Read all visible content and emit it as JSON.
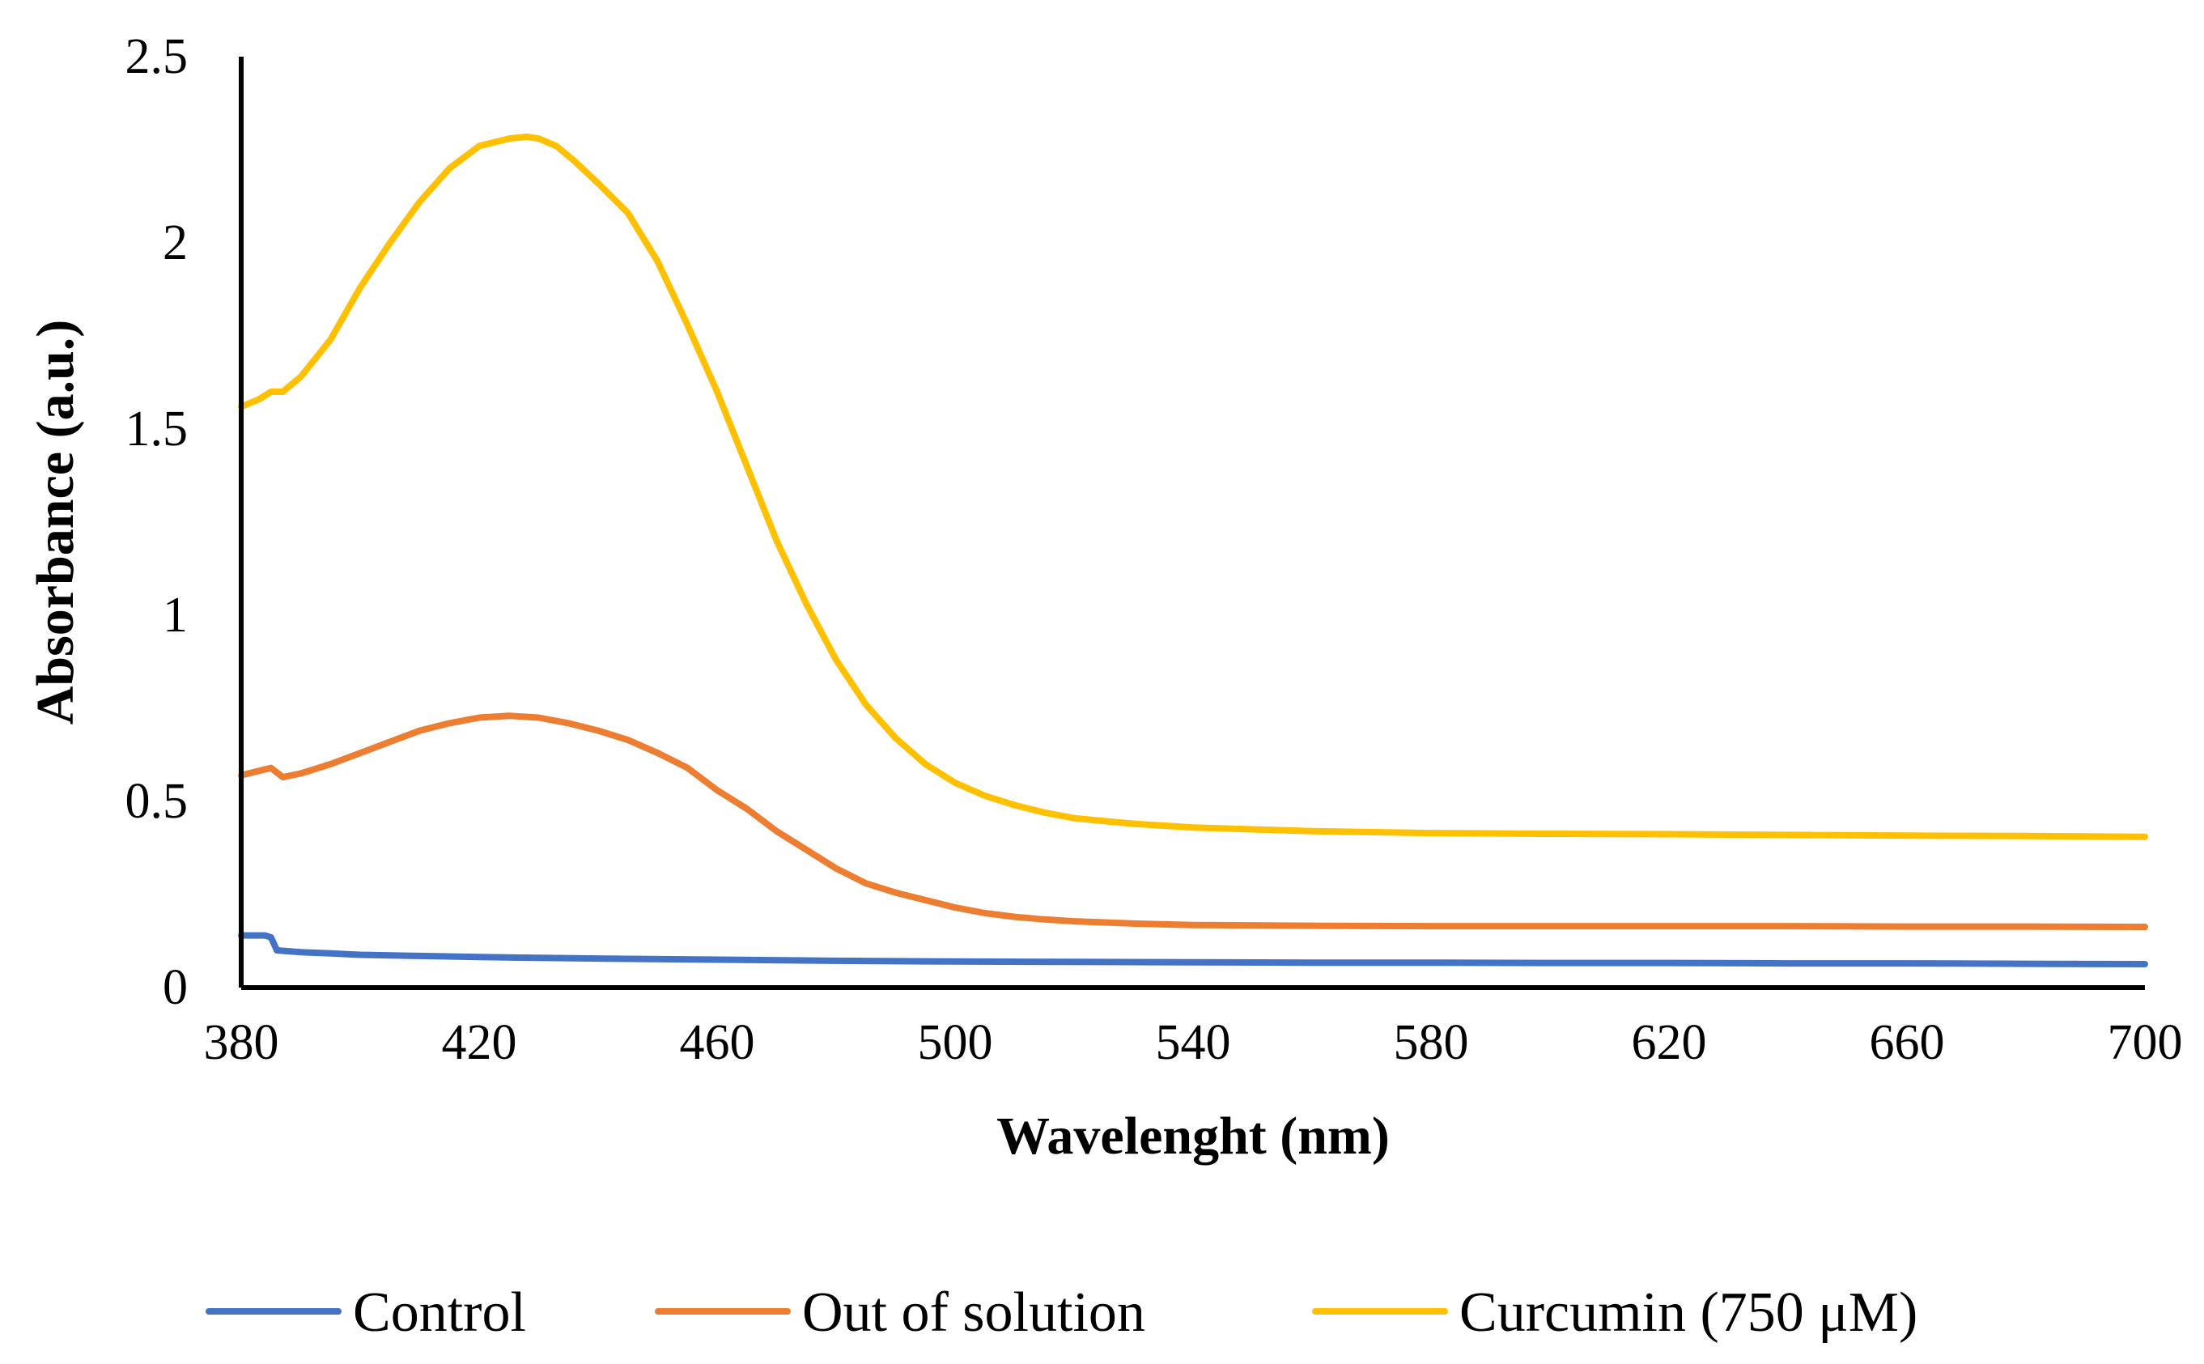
{
  "chart_data": {
    "type": "line",
    "title": "",
    "xlabel": "Wavelenght (nm)",
    "ylabel": "Absorbance (a.u.)",
    "xlim": [
      380,
      700
    ],
    "ylim": [
      0,
      2.5
    ],
    "xticks": [
      "380",
      "420",
      "460",
      "500",
      "540",
      "580",
      "620",
      "660",
      "700"
    ],
    "yticks": [
      "0",
      "0.5",
      "1",
      "1.5",
      "2",
      "2.5"
    ],
    "grid": false,
    "legend_position": "bottom",
    "series": [
      {
        "name": "Control",
        "color": "#4472C4",
        "x": [
          380,
          384,
          385,
          386,
          390,
          395,
          400,
          410,
          420,
          440,
          460,
          480,
          500,
          520,
          540,
          560,
          580,
          600,
          620,
          640,
          660,
          680,
          700
        ],
        "y": [
          0.14,
          0.14,
          0.135,
          0.1,
          0.095,
          0.092,
          0.088,
          0.085,
          0.082,
          0.078,
          0.075,
          0.072,
          0.07,
          0.069,
          0.068,
          0.067,
          0.067,
          0.066,
          0.066,
          0.065,
          0.065,
          0.064,
          0.063
        ]
      },
      {
        "name": "Out of solution",
        "color": "#ED7D31",
        "x": [
          380,
          385,
          387,
          390,
          395,
          400,
          405,
          410,
          415,
          420,
          425,
          430,
          435,
          440,
          445,
          450,
          455,
          460,
          465,
          470,
          475,
          480,
          485,
          490,
          495,
          500,
          505,
          510,
          515,
          520,
          530,
          540,
          560,
          580,
          600,
          620,
          640,
          660,
          680,
          700
        ],
        "y": [
          0.57,
          0.59,
          0.565,
          0.575,
          0.6,
          0.63,
          0.66,
          0.69,
          0.71,
          0.725,
          0.73,
          0.725,
          0.71,
          0.69,
          0.665,
          0.63,
          0.59,
          0.53,
          0.48,
          0.42,
          0.37,
          0.32,
          0.28,
          0.255,
          0.235,
          0.215,
          0.2,
          0.19,
          0.183,
          0.178,
          0.172,
          0.168,
          0.166,
          0.165,
          0.165,
          0.165,
          0.165,
          0.164,
          0.164,
          0.163
        ]
      },
      {
        "name": "Curcumin (750 μM)",
        "color": "#FFC000",
        "x": [
          380,
          383,
          385,
          387,
          390,
          395,
          400,
          405,
          410,
          415,
          420,
          425,
          428,
          430,
          433,
          436,
          440,
          445,
          450,
          455,
          460,
          465,
          470,
          475,
          480,
          485,
          490,
          495,
          500,
          505,
          510,
          515,
          520,
          530,
          540,
          550,
          560,
          580,
          600,
          620,
          640,
          660,
          680,
          700
        ],
        "y": [
          1.56,
          1.58,
          1.6,
          1.6,
          1.64,
          1.74,
          1.88,
          2.0,
          2.11,
          2.2,
          2.26,
          2.28,
          2.285,
          2.28,
          2.26,
          2.22,
          2.16,
          2.08,
          1.95,
          1.78,
          1.6,
          1.4,
          1.2,
          1.03,
          0.88,
          0.76,
          0.67,
          0.6,
          0.55,
          0.515,
          0.49,
          0.47,
          0.455,
          0.44,
          0.43,
          0.425,
          0.42,
          0.415,
          0.413,
          0.412,
          0.41,
          0.408,
          0.407,
          0.405
        ]
      }
    ]
  }
}
